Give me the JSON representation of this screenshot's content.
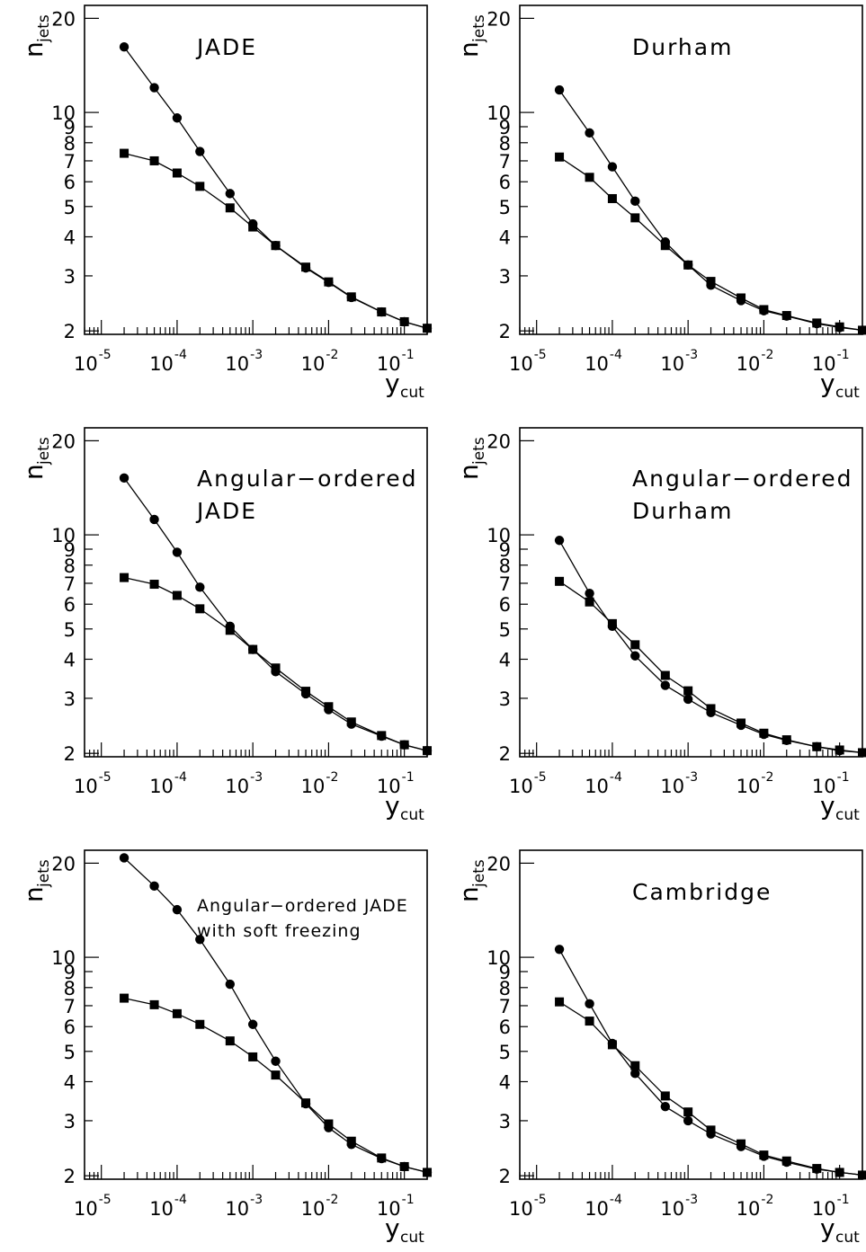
{
  "figure": {
    "ylabel_main": "n",
    "ylabel_sub": "jets",
    "xlabel_main": "y",
    "xlabel_sub": "cut",
    "x_base": "10",
    "x_exponents": [
      "-5",
      "-4",
      "-3",
      "-2",
      "-1"
    ],
    "y_tick_labels": [
      "2",
      "3",
      "4",
      "5",
      "6",
      "7",
      "8",
      "9",
      "10",
      "20"
    ]
  },
  "chart_data": [
    {
      "type": "line",
      "title_lines": [
        "JADE"
      ],
      "xscale": "log",
      "yscale": "log",
      "xlim": [
        6e-06,
        0.2
      ],
      "ylim": [
        1.95,
        22
      ],
      "x": [
        2e-05,
        5e-05,
        0.0001,
        0.0002,
        0.0005,
        0.001,
        0.002,
        0.005,
        0.01,
        0.02,
        0.05,
        0.1,
        0.2
      ],
      "series": [
        {
          "marker": "circle",
          "values": [
            16.2,
            12.0,
            9.6,
            7.5,
            5.5,
            4.4,
            3.75,
            3.18,
            2.86,
            2.56,
            2.3,
            2.14,
            2.04
          ]
        },
        {
          "marker": "square",
          "values": [
            7.4,
            7.0,
            6.4,
            5.8,
            4.95,
            4.3,
            3.75,
            3.2,
            2.87,
            2.57,
            2.3,
            2.14,
            2.04
          ]
        }
      ]
    },
    {
      "type": "line",
      "title_lines": [
        "Durham"
      ],
      "xscale": "log",
      "yscale": "log",
      "xlim": [
        6e-06,
        0.2
      ],
      "ylim": [
        1.95,
        22
      ],
      "x": [
        2e-05,
        5e-05,
        0.0001,
        0.0002,
        0.0005,
        0.001,
        0.002,
        0.005,
        0.01,
        0.02,
        0.05,
        0.1,
        0.2
      ],
      "series": [
        {
          "marker": "circle",
          "values": [
            11.8,
            8.6,
            6.7,
            5.2,
            3.85,
            3.25,
            2.8,
            2.5,
            2.32,
            2.23,
            2.11,
            2.05,
            2.01
          ]
        },
        {
          "marker": "square",
          "values": [
            7.2,
            6.2,
            5.3,
            4.6,
            3.75,
            3.25,
            2.88,
            2.55,
            2.34,
            2.24,
            2.12,
            2.06,
            2.01
          ]
        }
      ]
    },
    {
      "type": "line",
      "title_lines": [
        "Angular−ordered",
        "JADE"
      ],
      "xscale": "log",
      "yscale": "log",
      "xlim": [
        6e-06,
        0.2
      ],
      "ylim": [
        1.95,
        22
      ],
      "x": [
        2e-05,
        5e-05,
        0.0001,
        0.0002,
        0.0005,
        0.001,
        0.002,
        0.005,
        0.01,
        0.02,
        0.05,
        0.1,
        0.2
      ],
      "series": [
        {
          "marker": "circle",
          "values": [
            15.2,
            11.2,
            8.8,
            6.8,
            5.1,
            4.3,
            3.65,
            3.1,
            2.76,
            2.48,
            2.27,
            2.13,
            2.04
          ]
        },
        {
          "marker": "square",
          "values": [
            7.3,
            6.95,
            6.4,
            5.8,
            4.95,
            4.3,
            3.75,
            3.16,
            2.82,
            2.52,
            2.28,
            2.13,
            2.04
          ]
        }
      ]
    },
    {
      "type": "line",
      "title_lines": [
        "Angular−ordered",
        "Durham"
      ],
      "xscale": "log",
      "yscale": "log",
      "xlim": [
        6e-06,
        0.2
      ],
      "ylim": [
        1.95,
        22
      ],
      "x": [
        2e-05,
        5e-05,
        0.0001,
        0.0002,
        0.0005,
        0.001,
        0.002,
        0.005,
        0.01,
        0.02,
        0.05,
        0.1,
        0.2
      ],
      "series": [
        {
          "marker": "circle",
          "values": [
            9.6,
            6.5,
            5.1,
            4.1,
            3.3,
            2.98,
            2.7,
            2.46,
            2.3,
            2.2,
            2.1,
            2.04,
            2.01
          ]
        },
        {
          "marker": "square",
          "values": [
            7.1,
            6.1,
            5.2,
            4.45,
            3.55,
            3.17,
            2.78,
            2.5,
            2.32,
            2.21,
            2.1,
            2.05,
            2.01
          ]
        }
      ]
    },
    {
      "type": "line",
      "title_lines": [
        "Angular−ordered JADE",
        "with soft freezing"
      ],
      "xscale": "log",
      "yscale": "log",
      "xlim": [
        6e-06,
        0.2
      ],
      "ylim": [
        1.95,
        22
      ],
      "x": [
        2e-05,
        5e-05,
        0.0001,
        0.0002,
        0.0005,
        0.001,
        0.002,
        0.005,
        0.01,
        0.02,
        0.05,
        0.1,
        0.2
      ],
      "series": [
        {
          "marker": "circle",
          "values": [
            20.8,
            16.9,
            14.2,
            11.4,
            8.2,
            6.1,
            4.65,
            3.4,
            2.85,
            2.52,
            2.27,
            2.14,
            2.05
          ]
        },
        {
          "marker": "square",
          "values": [
            7.4,
            7.05,
            6.6,
            6.1,
            5.4,
            4.8,
            4.2,
            3.42,
            2.93,
            2.58,
            2.28,
            2.14,
            2.05
          ]
        }
      ]
    },
    {
      "type": "line",
      "title_lines": [
        "Cambridge"
      ],
      "xscale": "log",
      "yscale": "log",
      "xlim": [
        6e-06,
        0.2
      ],
      "ylim": [
        1.95,
        22
      ],
      "x": [
        2e-05,
        5e-05,
        0.0001,
        0.0002,
        0.0005,
        0.001,
        0.002,
        0.005,
        0.01,
        0.02,
        0.05,
        0.1,
        0.2
      ],
      "series": [
        {
          "marker": "circle",
          "values": [
            10.6,
            7.1,
            5.3,
            4.25,
            3.33,
            3.0,
            2.72,
            2.48,
            2.31,
            2.21,
            2.1,
            2.05,
            2.01
          ]
        },
        {
          "marker": "square",
          "values": [
            7.2,
            6.25,
            5.25,
            4.5,
            3.6,
            3.2,
            2.8,
            2.53,
            2.33,
            2.23,
            2.11,
            2.05,
            2.01
          ]
        }
      ]
    }
  ]
}
